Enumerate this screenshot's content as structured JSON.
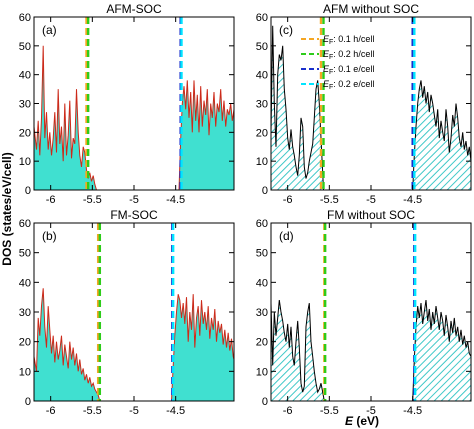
{
  "figure": {
    "ylabel": "DOS (states/eV/cell)",
    "xlabel_italic": "E",
    "xlabel_rest": " (eV)"
  },
  "legend": [
    {
      "sym": "E",
      "sub": "F",
      "text": ": 0.1 h/cell",
      "color": "#f5a623"
    },
    {
      "sym": "E",
      "sub": "F",
      "text": ": 0.2 h/cell",
      "color": "#2ecc1a"
    },
    {
      "sym": "E",
      "sub": "F",
      "text": ": 0.1 e/cell",
      "color": "#1a2fcc"
    },
    {
      "sym": "E",
      "sub": "F",
      "text": ": 0.2 e/cell",
      "color": "#00e5ff"
    }
  ],
  "colors": {
    "fill_soc": "#40e0d0",
    "curve_soc": "#cc2a1a",
    "hatch": "#40c8c8",
    "curve_nosoc": "#000000"
  },
  "chart_data": [
    {
      "type": "area",
      "title": "AFM-SOC",
      "panel_label": "(a)",
      "style": "soc",
      "xlim": [
        -6.2,
        -3.8
      ],
      "ylim": [
        0,
        60
      ],
      "xticks": [
        -6,
        -5.5,
        -5,
        -4.5
      ],
      "xtick_labels": [
        "-6",
        "-5.5",
        "-5",
        "-4.5"
      ],
      "yticks": [
        0,
        10,
        20,
        30,
        40,
        50,
        60
      ],
      "ytick_labels": [
        "0",
        "10",
        "20",
        "30",
        "40",
        "50",
        "60"
      ],
      "show_yticklabels": true,
      "show_xticklabels": false,
      "vlines": [
        {
          "x": -5.57,
          "color": "#f5a623"
        },
        {
          "x": -5.55,
          "color": "#2ecc1a"
        },
        {
          "x": -4.44,
          "color": "#1a2fcc"
        },
        {
          "x": -4.43,
          "color": "#00e5ff"
        }
      ],
      "segments": [
        {
          "x": [
            -6.2,
            -6.17,
            -6.15,
            -6.13,
            -6.11,
            -6.09,
            -6.07,
            -6.05,
            -6.03,
            -6.01,
            -5.99,
            -5.97,
            -5.95,
            -5.93,
            -5.91,
            -5.89,
            -5.87,
            -5.85,
            -5.83,
            -5.81,
            -5.79,
            -5.77,
            -5.75,
            -5.73,
            -5.71,
            -5.69,
            -5.67,
            -5.65,
            -5.63,
            -5.61,
            -5.59,
            -5.57,
            -5.55,
            -5.53,
            -5.51,
            -5.49,
            -5.47,
            -5.45
          ],
          "y": [
            22,
            14,
            24,
            12,
            25,
            50,
            18,
            27,
            14,
            20,
            12,
            18,
            27,
            13,
            35,
            16,
            22,
            10,
            30,
            12,
            19,
            31,
            11,
            18,
            16,
            35,
            20,
            12,
            8,
            15,
            13,
            7,
            4,
            6,
            3,
            5,
            2,
            0
          ]
        },
        {
          "x": [
            -4.46,
            -4.44,
            -4.42,
            -4.4,
            -4.38,
            -4.36,
            -4.34,
            -4.32,
            -4.3,
            -4.28,
            -4.26,
            -4.24,
            -4.22,
            -4.2,
            -4.18,
            -4.16,
            -4.14,
            -4.12,
            -4.1,
            -4.08,
            -4.06,
            -4.04,
            -4.02,
            -4.0,
            -3.98,
            -3.96,
            -3.94,
            -3.92,
            -3.9,
            -3.88,
            -3.86,
            -3.84,
            -3.82,
            -3.8
          ],
          "y": [
            0,
            18,
            30,
            36,
            28,
            38,
            25,
            34,
            20,
            38,
            24,
            33,
            20,
            36,
            22,
            31,
            26,
            35,
            19,
            30,
            25,
            34,
            22,
            30,
            27,
            35,
            24,
            31,
            22,
            28,
            26,
            30,
            24,
            28
          ]
        }
      ]
    },
    {
      "type": "area",
      "title": "AFM without SOC",
      "panel_label": "(c)",
      "style": "nosoc",
      "xlim": [
        -6.2,
        -3.8
      ],
      "ylim": [
        0,
        60
      ],
      "xticks": [
        -6,
        -5.5,
        -5,
        -4.5
      ],
      "xtick_labels": [
        "-6",
        "-5.5",
        "-5",
        "-4.5"
      ],
      "yticks": [
        0,
        10,
        20,
        30,
        40,
        50,
        60
      ],
      "ytick_labels": [
        "0",
        "10",
        "20",
        "30",
        "40",
        "50",
        "60"
      ],
      "show_yticklabels": false,
      "show_xticklabels": true,
      "vlines": [
        {
          "x": -5.6,
          "color": "#f5a623"
        },
        {
          "x": -5.57,
          "color": "#2ecc1a"
        },
        {
          "x": -4.5,
          "color": "#1a2fcc"
        },
        {
          "x": -4.48,
          "color": "#00e5ff"
        }
      ],
      "segments": [
        {
          "x": [
            -6.2,
            -6.18,
            -6.16,
            -6.14,
            -6.12,
            -6.1,
            -6.08,
            -6.06,
            -6.04,
            -6.02,
            -6.0,
            -5.98,
            -5.96,
            -5.94,
            -5.92,
            -5.9,
            -5.88,
            -5.86,
            -5.84,
            -5.82,
            -5.8,
            -5.78,
            -5.76,
            -5.74,
            -5.72,
            -5.7,
            -5.68,
            -5.66,
            -5.64,
            -5.62,
            -5.6,
            -5.58,
            -5.57
          ],
          "y": [
            20,
            57,
            30,
            15,
            40,
            47,
            45,
            50,
            35,
            28,
            18,
            14,
            21,
            15,
            12,
            8,
            5,
            12,
            25,
            22,
            8,
            4,
            6,
            10,
            13,
            16,
            25,
            35,
            38,
            30,
            18,
            6,
            0
          ]
        },
        {
          "x": [
            -4.5,
            -4.48,
            -4.46,
            -4.44,
            -4.42,
            -4.4,
            -4.38,
            -4.36,
            -4.34,
            -4.32,
            -4.3,
            -4.28,
            -4.26,
            -4.24,
            -4.22,
            -4.2,
            -4.18,
            -4.16,
            -4.14,
            -4.12,
            -4.1,
            -4.08,
            -4.06,
            -4.04,
            -4.02,
            -4.0,
            -3.98,
            -3.96,
            -3.94,
            -3.92,
            -3.9,
            -3.88,
            -3.86,
            -3.84,
            -3.82,
            -3.8
          ],
          "y": [
            0,
            12,
            22,
            30,
            35,
            38,
            32,
            36,
            30,
            34,
            27,
            33,
            30,
            26,
            22,
            28,
            18,
            24,
            20,
            17,
            28,
            22,
            13,
            18,
            26,
            22,
            30,
            25,
            18,
            15,
            20,
            14,
            17,
            12,
            15,
            10
          ]
        }
      ]
    },
    {
      "type": "area",
      "title": "FM-SOC",
      "panel_label": "(b)",
      "style": "soc",
      "xlim": [
        -6.2,
        -3.8
      ],
      "ylim": [
        0,
        60
      ],
      "xticks": [
        -6,
        -5.5,
        -5,
        -4.5
      ],
      "xtick_labels": [
        "-6",
        "-5.5",
        "-5",
        "-4.5"
      ],
      "yticks": [
        0,
        10,
        20,
        30,
        40,
        50,
        60
      ],
      "ytick_labels": [
        "0",
        "10",
        "20",
        "30",
        "40",
        "50",
        "60"
      ],
      "show_yticklabels": true,
      "show_xticklabels": true,
      "vlines": [
        {
          "x": -5.43,
          "color": "#f5a623"
        },
        {
          "x": -5.41,
          "color": "#2ecc1a"
        },
        {
          "x": -4.54,
          "color": "#1a2fcc"
        },
        {
          "x": -4.53,
          "color": "#00e5ff"
        }
      ],
      "segments": [
        {
          "x": [
            -6.2,
            -6.17,
            -6.15,
            -6.13,
            -6.11,
            -6.09,
            -6.07,
            -6.05,
            -6.03,
            -6.01,
            -5.99,
            -5.97,
            -5.95,
            -5.93,
            -5.91,
            -5.89,
            -5.87,
            -5.85,
            -5.83,
            -5.81,
            -5.79,
            -5.77,
            -5.75,
            -5.73,
            -5.71,
            -5.69,
            -5.67,
            -5.65,
            -5.63,
            -5.61,
            -5.59,
            -5.57,
            -5.55,
            -5.53,
            -5.51,
            -5.49,
            -5.47,
            -5.45,
            -5.43,
            -5.41
          ],
          "y": [
            15,
            10,
            28,
            22,
            32,
            38,
            25,
            18,
            32,
            24,
            16,
            22,
            13,
            20,
            14,
            17,
            22,
            12,
            19,
            15,
            11,
            20,
            14,
            18,
            12,
            16,
            10,
            14,
            9,
            11,
            7,
            9,
            6,
            8,
            5,
            6,
            4,
            3,
            2,
            0
          ]
        },
        {
          "x": [
            -4.55,
            -4.53,
            -4.51,
            -4.49,
            -4.47,
            -4.45,
            -4.43,
            -4.41,
            -4.39,
            -4.37,
            -4.35,
            -4.33,
            -4.31,
            -4.29,
            -4.27,
            -4.25,
            -4.23,
            -4.21,
            -4.19,
            -4.17,
            -4.15,
            -4.13,
            -4.11,
            -4.09,
            -4.07,
            -4.05,
            -4.03,
            -4.01,
            -3.99,
            -3.97,
            -3.95,
            -3.93,
            -3.91,
            -3.89,
            -3.87,
            -3.85,
            -3.83,
            -3.81,
            -3.8
          ],
          "y": [
            0,
            12,
            22,
            30,
            36,
            34,
            28,
            33,
            26,
            35,
            20,
            30,
            24,
            36,
            18,
            28,
            32,
            22,
            34,
            26,
            30,
            24,
            32,
            21,
            28,
            24,
            31,
            20,
            27,
            23,
            26,
            19,
            24,
            18,
            23,
            17,
            21,
            15,
            14
          ]
        }
      ]
    },
    {
      "type": "area",
      "title": "FM without SOC",
      "panel_label": "(d)",
      "style": "nosoc",
      "xlim": [
        -6.2,
        -3.8
      ],
      "ylim": [
        0,
        60
      ],
      "xticks": [
        -6,
        -5.5,
        -5,
        -4.5
      ],
      "xtick_labels": [
        "-6",
        "-5.5",
        "-5",
        "-4.5"
      ],
      "yticks": [
        0,
        10,
        20,
        30,
        40,
        50,
        60
      ],
      "ytick_labels": [
        "0",
        "10",
        "20",
        "30",
        "40",
        "50",
        "60"
      ],
      "show_yticklabels": false,
      "show_xticklabels": true,
      "vlines": [
        {
          "x": -5.56,
          "color": "#f5a623"
        },
        {
          "x": -5.55,
          "color": "#2ecc1a"
        },
        {
          "x": -4.48,
          "color": "#1a2fcc"
        },
        {
          "x": -4.47,
          "color": "#00e5ff"
        }
      ],
      "segments": [
        {
          "x": [
            -6.2,
            -6.18,
            -6.16,
            -6.14,
            -6.12,
            -6.1,
            -6.08,
            -6.06,
            -6.04,
            -6.02,
            -6.0,
            -5.98,
            -5.96,
            -5.94,
            -5.92,
            -5.9,
            -5.88,
            -5.86,
            -5.84,
            -5.82,
            -5.8,
            -5.78,
            -5.76,
            -5.74,
            -5.72,
            -5.7,
            -5.68,
            -5.66,
            -5.64,
            -5.62,
            -5.6,
            -5.58,
            -5.56
          ],
          "y": [
            33,
            12,
            30,
            22,
            28,
            34,
            30,
            27,
            23,
            20,
            26,
            18,
            25,
            15,
            12,
            20,
            27,
            18,
            6,
            3,
            5,
            25,
            30,
            33,
            20,
            15,
            10,
            6,
            3,
            4,
            6,
            3,
            0
          ]
        },
        {
          "x": [
            -4.5,
            -4.48,
            -4.46,
            -4.44,
            -4.42,
            -4.4,
            -4.38,
            -4.36,
            -4.34,
            -4.32,
            -4.3,
            -4.28,
            -4.26,
            -4.24,
            -4.22,
            -4.2,
            -4.18,
            -4.16,
            -4.14,
            -4.12,
            -4.1,
            -4.08,
            -4.06,
            -4.04,
            -4.02,
            -4.0,
            -3.98,
            -3.96,
            -3.94,
            -3.92,
            -3.9,
            -3.88,
            -3.86,
            -3.84,
            -3.82,
            -3.8
          ],
          "y": [
            0,
            14,
            25,
            32,
            28,
            33,
            26,
            30,
            34,
            27,
            31,
            24,
            30,
            26,
            32,
            28,
            24,
            30,
            27,
            22,
            29,
            25,
            20,
            27,
            23,
            28,
            22,
            25,
            20,
            24,
            19,
            22,
            18,
            20,
            16,
            15
          ]
        }
      ]
    }
  ]
}
